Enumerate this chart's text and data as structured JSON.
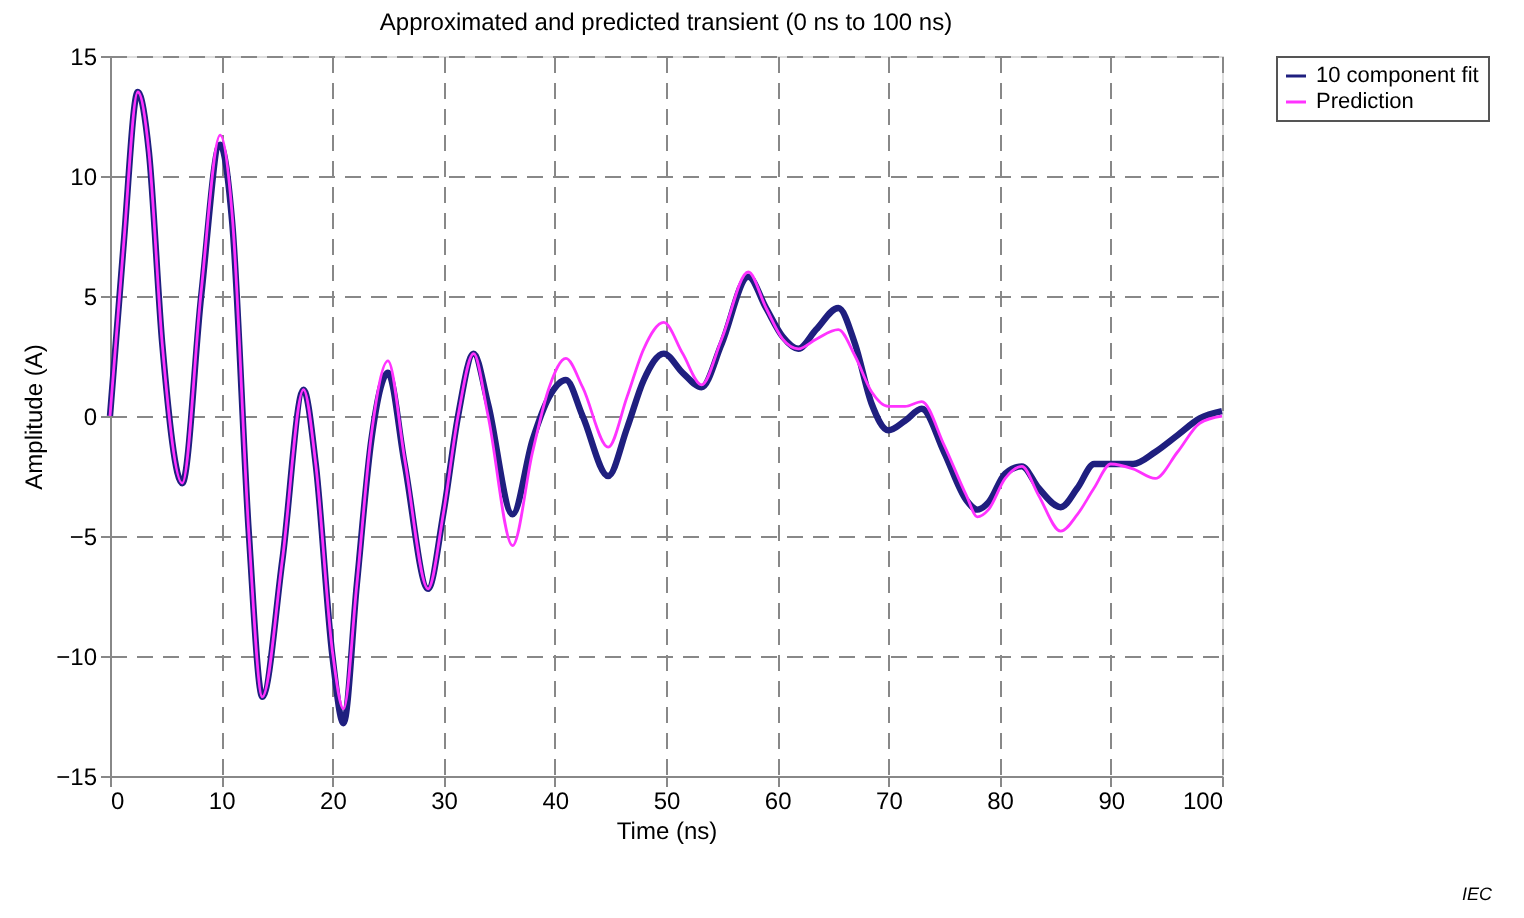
{
  "chart_data": {
    "type": "line",
    "title": "Approximated and predicted transient (0 ns to 100 ns)",
    "xlabel": "Time   (ns)",
    "ylabel": "Amplitude   (A)",
    "xlim": [
      0,
      100
    ],
    "xticks": [
      0,
      10,
      20,
      30,
      40,
      50,
      60,
      70,
      80,
      90,
      100
    ],
    "ylim": [
      -15,
      15
    ],
    "yticks": [
      -15,
      -10,
      -5,
      0,
      5,
      10,
      15
    ],
    "grid": true,
    "legend": "right",
    "line_style": "solid",
    "annotations": [
      "IEC"
    ],
    "series": [
      {
        "name": "10 component fit",
        "color": "#1f1f7f",
        "x": [
          0,
          1.2,
          2.5,
          3.5,
          4.7,
          6.5,
          8.2,
          9.9,
          11,
          12.5,
          13.7,
          15.5,
          17.4,
          18.5,
          20,
          21,
          22.2,
          23.5,
          25,
          26.5,
          28.6,
          30,
          31.3,
          32.7,
          34,
          36.2,
          38,
          39.5,
          41,
          42.5,
          44.8,
          46.5,
          48,
          49.8,
          51.5,
          53.2,
          55,
          57.4,
          59,
          60.5,
          61.9,
          63.5,
          65.5,
          67,
          68.5,
          70,
          71.5,
          73,
          75,
          77,
          78,
          79,
          80.5,
          82,
          83.5,
          85.5,
          87,
          88.5,
          90,
          92,
          94,
          96,
          98,
          100
        ],
        "values": [
          0,
          7,
          13.5,
          11,
          3,
          -2.8,
          5,
          11.3,
          8,
          -5,
          -11.7,
          -6,
          1.1,
          -2,
          -10,
          -12.8,
          -7,
          -1,
          1.8,
          -2,
          -7.2,
          -4,
          0,
          2.6,
          0.5,
          -4.1,
          -1,
          0.8,
          1.5,
          0,
          -2.5,
          -0.5,
          1.5,
          2.6,
          1.8,
          1.2,
          3,
          5.8,
          4.5,
          3.3,
          2.8,
          3.6,
          4.5,
          3,
          0.5,
          -0.6,
          -0.2,
          0.3,
          -1.5,
          -3.5,
          -3.9,
          -3.6,
          -2.4,
          -2.1,
          -3,
          -3.8,
          -3,
          -2,
          -2,
          -2,
          -1.5,
          -0.8,
          -0.1,
          0.2
        ]
      },
      {
        "name": "Prediction",
        "color": "#ff33ff",
        "x": [
          0,
          1.2,
          2.5,
          3.5,
          4.7,
          6.5,
          8.2,
          9.9,
          11,
          12.5,
          13.7,
          15.5,
          17.4,
          18.5,
          20,
          21,
          22.2,
          23.5,
          25,
          26.5,
          28.6,
          30,
          31.3,
          32.7,
          34,
          36.2,
          38,
          39.5,
          41,
          42.5,
          44.8,
          46.5,
          48,
          49.8,
          51.5,
          53.2,
          55,
          57.4,
          59,
          60.5,
          61.9,
          63.5,
          65.5,
          67,
          68.5,
          70,
          71.5,
          73,
          75,
          77,
          78,
          79,
          80.5,
          82,
          83.5,
          85.5,
          87,
          88.5,
          90,
          92,
          94,
          96,
          98,
          100
        ],
        "values": [
          0,
          7,
          13.5,
          11,
          3,
          -2.8,
          5.2,
          11.7,
          8.3,
          -5,
          -11.7,
          -6,
          1.1,
          -2,
          -9.8,
          -12.2,
          -7,
          -0.8,
          2.3,
          -1.8,
          -7.2,
          -4,
          0,
          2.6,
          0,
          -5.4,
          -1.5,
          1.2,
          2.4,
          1.2,
          -1.3,
          0.8,
          2.8,
          3.9,
          2.6,
          1.3,
          3.2,
          6,
          4.5,
          3.2,
          2.8,
          3.2,
          3.6,
          2.5,
          1,
          0.4,
          0.4,
          0.6,
          -1.2,
          -3.3,
          -4.2,
          -3.9,
          -2.6,
          -2.1,
          -3.3,
          -4.8,
          -4.1,
          -3,
          -2,
          -2.2,
          -2.6,
          -1.5,
          -0.3,
          0
        ]
      }
    ]
  }
}
